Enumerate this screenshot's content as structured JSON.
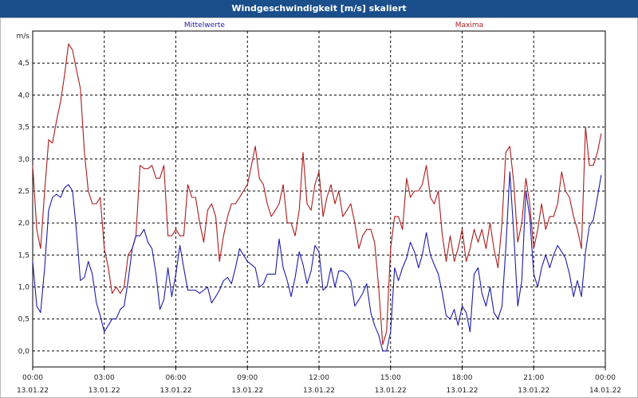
{
  "title": "Windgeschwindigkeit [m/s] skaliert",
  "chart_data": {
    "type": "line",
    "ylabel": "m/s",
    "ylim": [
      -0.25,
      5.0
    ],
    "y_ticks": [
      "0,0",
      "0,5",
      "1,0",
      "1,5",
      "2,0",
      "2,5",
      "3,0",
      "3,5",
      "4,0",
      "4,5"
    ],
    "y_tick_values": [
      0,
      0.5,
      1.0,
      1.5,
      2.0,
      2.5,
      3.0,
      3.5,
      4.0,
      4.5
    ],
    "xlim": [
      0,
      24
    ],
    "x_ticks": [
      {
        "time": "00:00",
        "date": "13.01.22"
      },
      {
        "time": "03:00",
        "date": "13.01.22"
      },
      {
        "time": "06:00",
        "date": "13.01.22"
      },
      {
        "time": "09:00",
        "date": "13.01.22"
      },
      {
        "time": "12:00",
        "date": "13.01.22"
      },
      {
        "time": "15:00",
        "date": "13.01.22"
      },
      {
        "time": "18:00",
        "date": "13.01.22"
      },
      {
        "time": "21:00",
        "date": "13.01.22"
      },
      {
        "time": "00:00",
        "date": "14.01.22"
      }
    ],
    "grid": true,
    "series": [
      {
        "name": "Mittelwerte",
        "color": "#1c1caa",
        "points": [
          [
            0,
            1.4
          ],
          [
            0.17,
            0.7
          ],
          [
            0.33,
            0.6
          ],
          [
            0.5,
            1.3
          ],
          [
            0.67,
            2.2
          ],
          [
            0.83,
            2.4
          ],
          [
            1.0,
            2.45
          ],
          [
            1.17,
            2.4
          ],
          [
            1.33,
            2.55
          ],
          [
            1.5,
            2.6
          ],
          [
            1.67,
            2.5
          ],
          [
            1.83,
            1.9
          ],
          [
            2.0,
            1.1
          ],
          [
            2.17,
            1.15
          ],
          [
            2.33,
            1.4
          ],
          [
            2.5,
            1.2
          ],
          [
            2.67,
            0.75
          ],
          [
            2.83,
            0.55
          ],
          [
            3.0,
            0.3
          ],
          [
            3.17,
            0.4
          ],
          [
            3.33,
            0.5
          ],
          [
            3.5,
            0.5
          ],
          [
            3.67,
            0.65
          ],
          [
            3.83,
            0.7
          ],
          [
            4.0,
            1.1
          ],
          [
            4.17,
            1.6
          ],
          [
            4.33,
            1.8
          ],
          [
            4.5,
            1.8
          ],
          [
            4.67,
            1.9
          ],
          [
            4.83,
            1.7
          ],
          [
            5.0,
            1.6
          ],
          [
            5.17,
            1.2
          ],
          [
            5.33,
            0.65
          ],
          [
            5.5,
            0.8
          ],
          [
            5.67,
            1.3
          ],
          [
            5.83,
            0.85
          ],
          [
            6.0,
            1.2
          ],
          [
            6.17,
            1.65
          ],
          [
            6.33,
            1.3
          ],
          [
            6.5,
            0.95
          ],
          [
            6.67,
            0.95
          ],
          [
            6.83,
            0.95
          ],
          [
            7.0,
            0.9
          ],
          [
            7.17,
            0.95
          ],
          [
            7.33,
            1.0
          ],
          [
            7.5,
            0.75
          ],
          [
            7.67,
            0.85
          ],
          [
            7.83,
            0.95
          ],
          [
            8.0,
            1.1
          ],
          [
            8.17,
            1.15
          ],
          [
            8.33,
            1.05
          ],
          [
            8.5,
            1.3
          ],
          [
            8.67,
            1.6
          ],
          [
            8.83,
            1.5
          ],
          [
            9.0,
            1.4
          ],
          [
            9.17,
            1.35
          ],
          [
            9.33,
            1.3
          ],
          [
            9.5,
            1.0
          ],
          [
            9.67,
            1.05
          ],
          [
            9.83,
            1.2
          ],
          [
            10.0,
            1.2
          ],
          [
            10.17,
            1.2
          ],
          [
            10.33,
            1.75
          ],
          [
            10.5,
            1.3
          ],
          [
            10.67,
            1.1
          ],
          [
            10.83,
            0.85
          ],
          [
            11.0,
            1.15
          ],
          [
            11.17,
            1.55
          ],
          [
            11.33,
            1.35
          ],
          [
            11.5,
            1.05
          ],
          [
            11.67,
            1.25
          ],
          [
            11.83,
            1.65
          ],
          [
            12.0,
            1.55
          ],
          [
            12.17,
            0.95
          ],
          [
            12.33,
            1.0
          ],
          [
            12.5,
            1.3
          ],
          [
            12.67,
            1.0
          ],
          [
            12.83,
            1.25
          ],
          [
            13.0,
            1.25
          ],
          [
            13.17,
            1.2
          ],
          [
            13.33,
            1.1
          ],
          [
            13.5,
            0.7
          ],
          [
            13.67,
            0.8
          ],
          [
            13.83,
            0.9
          ],
          [
            14.0,
            1.05
          ],
          [
            14.17,
            0.6
          ],
          [
            14.33,
            0.4
          ],
          [
            14.5,
            0.25
          ],
          [
            14.67,
            0.0
          ],
          [
            14.83,
            0.0
          ],
          [
            15.0,
            0.3
          ],
          [
            15.17,
            1.3
          ],
          [
            15.33,
            1.1
          ],
          [
            15.5,
            1.3
          ],
          [
            15.67,
            1.45
          ],
          [
            15.83,
            1.7
          ],
          [
            16.0,
            1.55
          ],
          [
            16.17,
            1.3
          ],
          [
            16.33,
            1.5
          ],
          [
            16.5,
            1.85
          ],
          [
            16.67,
            1.5
          ],
          [
            16.83,
            1.35
          ],
          [
            17.0,
            1.2
          ],
          [
            17.17,
            0.9
          ],
          [
            17.33,
            0.55
          ],
          [
            17.5,
            0.5
          ],
          [
            17.67,
            0.65
          ],
          [
            17.83,
            0.4
          ],
          [
            18.0,
            0.7
          ],
          [
            18.17,
            0.6
          ],
          [
            18.33,
            0.3
          ],
          [
            18.5,
            1.2
          ],
          [
            18.67,
            1.3
          ],
          [
            18.83,
            0.9
          ],
          [
            19.0,
            0.7
          ],
          [
            19.17,
            1.0
          ],
          [
            19.33,
            0.6
          ],
          [
            19.5,
            0.5
          ],
          [
            19.67,
            0.7
          ],
          [
            19.83,
            1.6
          ],
          [
            20.0,
            2.8
          ],
          [
            20.17,
            1.8
          ],
          [
            20.33,
            0.7
          ],
          [
            20.5,
            1.1
          ],
          [
            20.67,
            2.5
          ],
          [
            20.83,
            2.1
          ],
          [
            21.0,
            1.2
          ],
          [
            21.17,
            1.0
          ],
          [
            21.33,
            1.3
          ],
          [
            21.5,
            1.5
          ],
          [
            21.67,
            1.3
          ],
          [
            21.83,
            1.5
          ],
          [
            22.0,
            1.65
          ],
          [
            22.17,
            1.55
          ],
          [
            22.33,
            1.45
          ],
          [
            22.5,
            1.2
          ],
          [
            22.67,
            0.85
          ],
          [
            22.83,
            1.1
          ],
          [
            23.0,
            0.85
          ],
          [
            23.17,
            1.55
          ],
          [
            23.33,
            1.95
          ],
          [
            23.5,
            2.05
          ],
          [
            23.67,
            2.4
          ],
          [
            23.83,
            2.75
          ]
        ]
      },
      {
        "name": "Maxima",
        "color": "#aa1c1c",
        "points": [
          [
            0,
            2.9
          ],
          [
            0.17,
            1.9
          ],
          [
            0.33,
            1.6
          ],
          [
            0.5,
            2.5
          ],
          [
            0.67,
            3.3
          ],
          [
            0.83,
            3.25
          ],
          [
            1.0,
            3.6
          ],
          [
            1.17,
            3.9
          ],
          [
            1.33,
            4.3
          ],
          [
            1.5,
            4.8
          ],
          [
            1.67,
            4.7
          ],
          [
            1.83,
            4.4
          ],
          [
            2.0,
            4.1
          ],
          [
            2.17,
            3.1
          ],
          [
            2.33,
            2.5
          ],
          [
            2.5,
            2.3
          ],
          [
            2.67,
            2.3
          ],
          [
            2.83,
            2.4
          ],
          [
            3.0,
            1.6
          ],
          [
            3.17,
            1.3
          ],
          [
            3.33,
            0.9
          ],
          [
            3.5,
            1.0
          ],
          [
            3.67,
            0.9
          ],
          [
            3.83,
            1.0
          ],
          [
            4.0,
            1.5
          ],
          [
            4.17,
            1.6
          ],
          [
            4.33,
            1.8
          ],
          [
            4.5,
            2.9
          ],
          [
            4.67,
            2.85
          ],
          [
            4.83,
            2.85
          ],
          [
            5.0,
            2.9
          ],
          [
            5.17,
            2.7
          ],
          [
            5.33,
            2.7
          ],
          [
            5.5,
            2.9
          ],
          [
            5.67,
            1.8
          ],
          [
            5.83,
            1.8
          ],
          [
            6.0,
            1.9
          ],
          [
            6.17,
            1.8
          ],
          [
            6.33,
            1.8
          ],
          [
            6.5,
            2.6
          ],
          [
            6.67,
            2.4
          ],
          [
            6.83,
            2.4
          ],
          [
            7.0,
            2.0
          ],
          [
            7.17,
            1.7
          ],
          [
            7.33,
            2.2
          ],
          [
            7.5,
            2.3
          ],
          [
            7.67,
            2.1
          ],
          [
            7.83,
            1.4
          ],
          [
            8.0,
            1.8
          ],
          [
            8.17,
            2.1
          ],
          [
            8.33,
            2.3
          ],
          [
            8.5,
            2.3
          ],
          [
            8.67,
            2.4
          ],
          [
            8.83,
            2.5
          ],
          [
            9.0,
            2.6
          ],
          [
            9.17,
            2.9
          ],
          [
            9.33,
            3.2
          ],
          [
            9.5,
            2.7
          ],
          [
            9.67,
            2.6
          ],
          [
            9.83,
            2.3
          ],
          [
            10.0,
            2.1
          ],
          [
            10.17,
            2.2
          ],
          [
            10.33,
            2.3
          ],
          [
            10.5,
            2.6
          ],
          [
            10.67,
            2.0
          ],
          [
            10.83,
            2.0
          ],
          [
            11.0,
            1.8
          ],
          [
            11.17,
            2.2
          ],
          [
            11.33,
            3.1
          ],
          [
            11.5,
            2.3
          ],
          [
            11.67,
            2.2
          ],
          [
            11.83,
            2.6
          ],
          [
            12.0,
            2.8
          ],
          [
            12.17,
            2.1
          ],
          [
            12.33,
            2.4
          ],
          [
            12.5,
            2.6
          ],
          [
            12.67,
            2.3
          ],
          [
            12.83,
            2.5
          ],
          [
            13.0,
            2.1
          ],
          [
            13.17,
            2.2
          ],
          [
            13.33,
            2.3
          ],
          [
            13.5,
            2.0
          ],
          [
            13.67,
            1.6
          ],
          [
            13.83,
            1.8
          ],
          [
            14.0,
            1.9
          ],
          [
            14.17,
            1.9
          ],
          [
            14.33,
            1.7
          ],
          [
            14.5,
            1.0
          ],
          [
            14.67,
            0.1
          ],
          [
            14.83,
            0.3
          ],
          [
            15.0,
            1.6
          ],
          [
            15.17,
            2.1
          ],
          [
            15.33,
            2.1
          ],
          [
            15.5,
            1.9
          ],
          [
            15.67,
            2.7
          ],
          [
            15.83,
            2.4
          ],
          [
            16.0,
            2.5
          ],
          [
            16.17,
            2.5
          ],
          [
            16.33,
            2.6
          ],
          [
            16.5,
            2.9
          ],
          [
            16.67,
            2.4
          ],
          [
            16.83,
            2.3
          ],
          [
            17.0,
            2.5
          ],
          [
            17.17,
            1.8
          ],
          [
            17.33,
            1.4
          ],
          [
            17.5,
            1.8
          ],
          [
            17.67,
            1.4
          ],
          [
            17.83,
            1.6
          ],
          [
            18.0,
            1.9
          ],
          [
            18.17,
            1.4
          ],
          [
            18.33,
            1.6
          ],
          [
            18.5,
            1.9
          ],
          [
            18.67,
            1.7
          ],
          [
            18.83,
            1.9
          ],
          [
            19.0,
            1.6
          ],
          [
            19.17,
            2.0
          ],
          [
            19.33,
            1.6
          ],
          [
            19.5,
            1.3
          ],
          [
            19.67,
            2.0
          ],
          [
            19.83,
            3.1
          ],
          [
            20.0,
            3.2
          ],
          [
            20.17,
            2.6
          ],
          [
            20.33,
            1.7
          ],
          [
            20.5,
            2.0
          ],
          [
            20.67,
            2.7
          ],
          [
            20.83,
            2.3
          ],
          [
            21.0,
            1.6
          ],
          [
            21.17,
            1.9
          ],
          [
            21.33,
            2.3
          ],
          [
            21.5,
            1.9
          ],
          [
            21.67,
            2.1
          ],
          [
            21.83,
            2.1
          ],
          [
            22.0,
            2.3
          ],
          [
            22.17,
            2.8
          ],
          [
            22.33,
            2.5
          ],
          [
            22.5,
            2.4
          ],
          [
            22.67,
            2.1
          ],
          [
            22.83,
            1.9
          ],
          [
            23.0,
            1.6
          ],
          [
            23.17,
            3.5
          ],
          [
            23.33,
            2.9
          ],
          [
            23.5,
            2.9
          ],
          [
            23.67,
            3.1
          ],
          [
            23.83,
            3.4
          ]
        ]
      }
    ]
  }
}
